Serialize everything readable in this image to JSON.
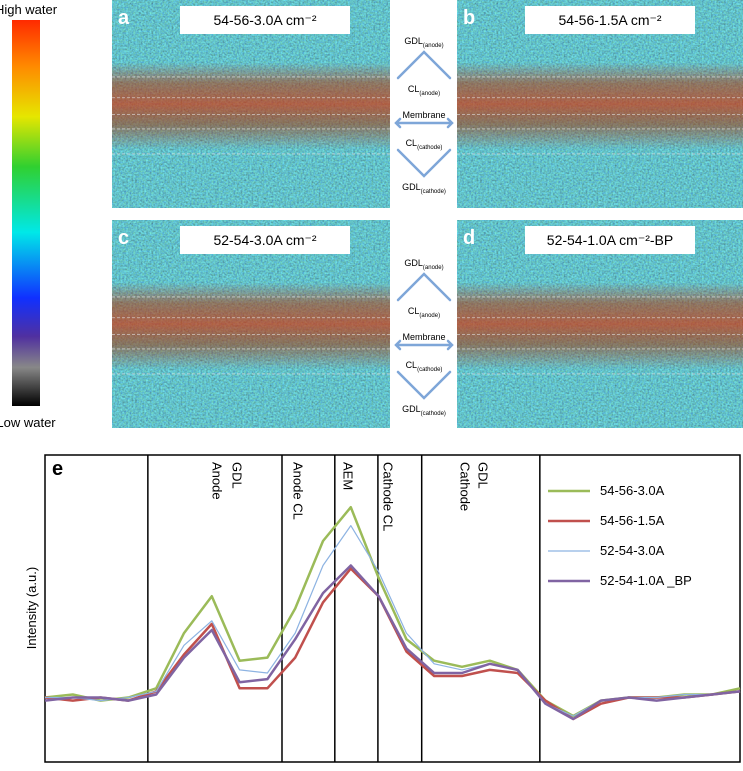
{
  "colorbar": {
    "top_label": "High water",
    "bottom_label": "Low water"
  },
  "panels": [
    {
      "letter": "a",
      "title": "54-56-3.0A cm⁻²"
    },
    {
      "letter": "b",
      "title": "54-56-1.5A cm⁻²"
    },
    {
      "letter": "c",
      "title": "52-54-3.0A cm⁻²"
    },
    {
      "letter": "d",
      "title": "52-54-1.0A cm⁻²-BP"
    }
  ],
  "layers": [
    {
      "name": "GDL",
      "sub": "(anode)"
    },
    {
      "name": "CL",
      "sub": "(anode)"
    },
    {
      "name": "Membrane"
    },
    {
      "name": "CL",
      "sub": "(cathode)"
    },
    {
      "name": "GDL",
      "sub": "(cathode)"
    }
  ],
  "chart_data": {
    "type": "line",
    "letter": "e",
    "y_label": "Intensity (a.u.)",
    "x": [
      0,
      4,
      8,
      12,
      16,
      20,
      24,
      28,
      32,
      36,
      40,
      44,
      48,
      52,
      56,
      60,
      64,
      68,
      72,
      76,
      80,
      84,
      88,
      92,
      96,
      100
    ],
    "xlim": [
      0,
      100
    ],
    "ylim": [
      0,
      100
    ],
    "boundaries": [
      14.8,
      34.1,
      41.7,
      47.9,
      54.2,
      71.2
    ],
    "regions": [
      {
        "lines": [
          "Anode",
          "GDL"
        ]
      },
      {
        "lines": [
          "Anode CL"
        ]
      },
      {
        "lines": [
          "AEM"
        ]
      },
      {
        "lines": [
          "Cathode CL"
        ]
      },
      {
        "lines": [
          "Cathode",
          "GDL"
        ]
      }
    ],
    "series": [
      {
        "name": "54-56-3.0A",
        "color": "#9bbb59",
        "width": 2.5,
        "values": [
          21,
          22,
          20,
          21,
          24,
          42,
          54,
          33,
          34,
          50,
          72,
          83,
          60,
          40,
          33,
          31,
          33,
          30,
          20,
          15,
          20,
          21,
          21,
          22,
          22,
          24
        ]
      },
      {
        "name": "54-56-1.5A",
        "color": "#c0504d",
        "width": 2.5,
        "values": [
          21,
          20,
          21,
          20,
          23,
          35,
          45,
          24,
          24,
          34,
          52,
          63,
          54,
          36,
          28,
          28,
          30,
          29,
          20,
          14,
          19,
          21,
          21,
          21,
          22,
          23
        ]
      },
      {
        "name": "52-54-3.0A",
        "color": "#8db3e2",
        "width": 1.2,
        "values": [
          21,
          21,
          20,
          21,
          23,
          38,
          46,
          30,
          29,
          42,
          64,
          77,
          62,
          42,
          32,
          30,
          32,
          30,
          19,
          15,
          20,
          21,
          21,
          22,
          22,
          23
        ]
      },
      {
        "name": "52-54-1.0A _BP",
        "color": "#8064a2",
        "width": 2.5,
        "values": [
          20,
          21,
          21,
          20,
          22,
          34,
          43,
          26,
          27,
          40,
          55,
          64,
          54,
          37,
          29,
          29,
          32,
          30,
          19,
          14,
          20,
          21,
          20,
          21,
          22,
          23
        ]
      }
    ]
  }
}
